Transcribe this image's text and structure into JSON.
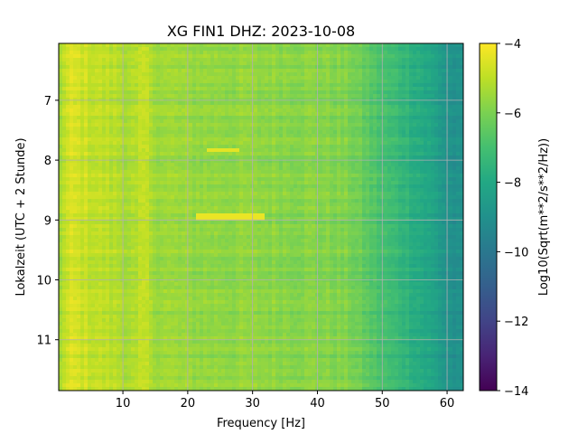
{
  "chart_data": {
    "type": "heatmap",
    "title": "XG FIN1  DHZ: 2023-10-08",
    "xlabel": "Frequency [Hz]",
    "ylabel": "Lokalzeit (UTC + 2 Stunde)",
    "colorbar_label": "Log10(Sqrt(m**2/s**2/Hz))",
    "xlim": [
      0.1,
      62.5
    ],
    "ylim": [
      11.85,
      6.05
    ],
    "x_ticks": [
      10,
      20,
      30,
      40,
      50,
      60
    ],
    "y_ticks": [
      7,
      8,
      9,
      10,
      11
    ],
    "colorbar_ticks": [
      -4,
      -6,
      -8,
      -10,
      -12,
      -14
    ],
    "colorbar_range": [
      -14,
      -4
    ],
    "colormap": "viridis",
    "grid": true,
    "value_profile": {
      "frequency_hz": [
        0,
        2,
        5,
        10,
        20,
        30,
        40,
        45,
        48,
        50,
        53,
        56,
        58,
        60,
        62.5
      ],
      "log_amplitude": [
        -5.4,
        -4.6,
        -4.9,
        -5.2,
        -5.6,
        -5.7,
        -5.8,
        -6.0,
        -6.6,
        -7.0,
        -7.4,
        -7.9,
        -8.3,
        -8.9,
        -9.2
      ]
    },
    "features": [
      {
        "frequency_start": 23,
        "frequency_end": 28,
        "time": 7.84,
        "log_amplitude": -4.4
      },
      {
        "frequency_start": 21,
        "frequency_end": 32,
        "time": 8.94,
        "log_amplitude": -4.3
      },
      {
        "frequency_start": 13,
        "frequency_end": 13.3,
        "time_start": 6.1,
        "time_end": 11.85,
        "log_amplitude": -4.9
      }
    ]
  }
}
